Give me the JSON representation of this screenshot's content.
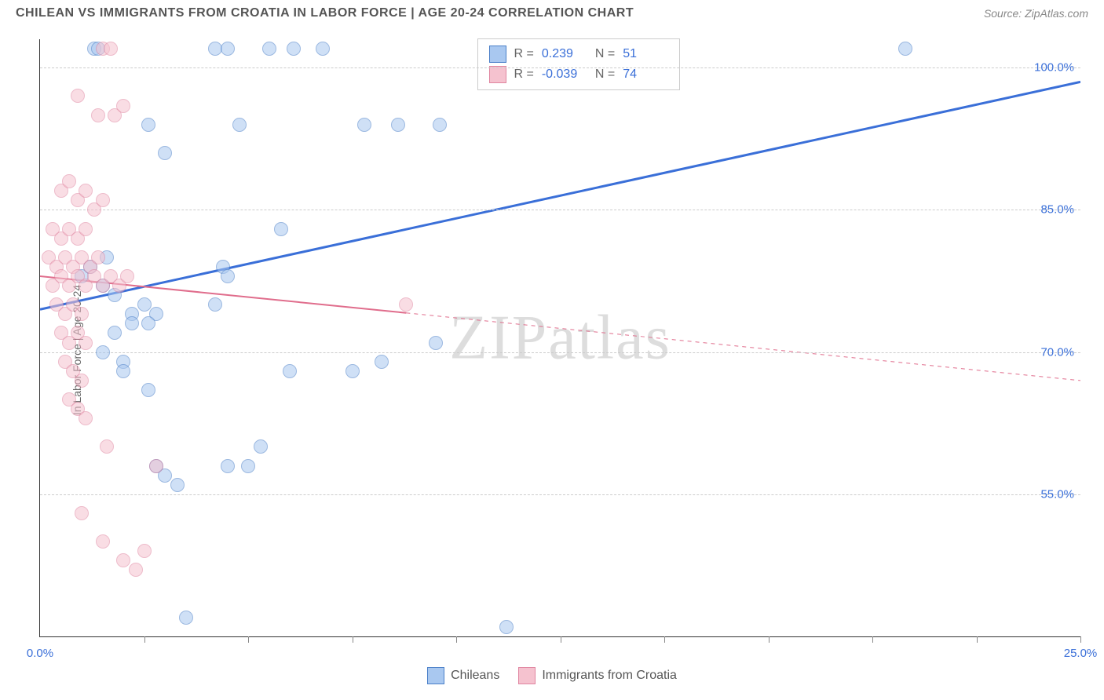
{
  "header": {
    "title": "CHILEAN VS IMMIGRANTS FROM CROATIA IN LABOR FORCE | AGE 20-24 CORRELATION CHART",
    "source": "Source: ZipAtlas.com"
  },
  "chart": {
    "type": "scatter",
    "y_label": "In Labor Force | Age 20-24",
    "x_domain": [
      0,
      25
    ],
    "y_domain": [
      40,
      103
    ],
    "y_ticks": [
      55.0,
      70.0,
      85.0,
      100.0
    ],
    "y_tick_labels": [
      "55.0%",
      "70.0%",
      "85.0%",
      "100.0%"
    ],
    "x_minor_ticks": [
      2.5,
      5.0,
      7.5,
      10.0,
      12.5,
      15.0,
      17.5,
      20.0,
      22.5,
      25.0
    ],
    "x_tick_labels": [
      {
        "x": 0,
        "label": "0.0%"
      },
      {
        "x": 25,
        "label": "25.0%"
      }
    ],
    "grid_color": "#cccccc",
    "background_color": "#ffffff",
    "series": [
      {
        "name": "Chileans",
        "color_fill": "#a9c8f0",
        "color_stroke": "#4a7fc8",
        "marker_radius": 9,
        "r_value": "0.239",
        "n_value": "51",
        "trend": {
          "x1": 0,
          "y1": 74.5,
          "x2": 25,
          "y2": 98.5,
          "solid_until_x": 25,
          "line_width": 3
        },
        "points": [
          [
            1.3,
            102
          ],
          [
            1.4,
            102
          ],
          [
            4.2,
            102
          ],
          [
            4.5,
            102
          ],
          [
            5.5,
            102
          ],
          [
            6.1,
            102
          ],
          [
            6.8,
            102
          ],
          [
            20.8,
            102
          ],
          [
            2.6,
            94
          ],
          [
            4.8,
            94
          ],
          [
            7.8,
            94
          ],
          [
            8.6,
            94
          ],
          [
            9.6,
            94
          ],
          [
            1.0,
            78
          ],
          [
            1.2,
            79
          ],
          [
            1.5,
            77
          ],
          [
            1.6,
            80
          ],
          [
            1.8,
            76
          ],
          [
            2.2,
            74
          ],
          [
            2.5,
            75
          ],
          [
            2.8,
            74
          ],
          [
            3.0,
            91
          ],
          [
            4.4,
            79
          ],
          [
            4.5,
            78
          ],
          [
            5.8,
            83
          ],
          [
            2.2,
            73
          ],
          [
            2.6,
            73
          ],
          [
            1.8,
            72
          ],
          [
            1.5,
            70
          ],
          [
            2.0,
            69
          ],
          [
            4.2,
            75
          ],
          [
            6.0,
            68
          ],
          [
            7.5,
            68
          ],
          [
            8.2,
            69
          ],
          [
            9.5,
            71
          ],
          [
            2.0,
            68
          ],
          [
            2.6,
            66
          ],
          [
            2.8,
            58
          ],
          [
            3.0,
            57
          ],
          [
            3.3,
            56
          ],
          [
            4.5,
            58
          ],
          [
            5.0,
            58
          ],
          [
            5.3,
            60
          ],
          [
            3.5,
            42
          ],
          [
            11.2,
            41
          ]
        ]
      },
      {
        "name": "Immigrants from Croatia",
        "color_fill": "#f5c2cf",
        "color_stroke": "#e085a0",
        "marker_radius": 9,
        "r_value": "-0.039",
        "n_value": "74",
        "trend": {
          "x1": 0,
          "y1": 78.0,
          "x2": 25,
          "y2": 67.0,
          "solid_until_x": 8.8,
          "line_width": 2
        },
        "points": [
          [
            1.5,
            102
          ],
          [
            1.7,
            102
          ],
          [
            0.9,
            97
          ],
          [
            1.4,
            95
          ],
          [
            1.8,
            95
          ],
          [
            2.0,
            96
          ],
          [
            0.5,
            87
          ],
          [
            0.7,
            88
          ],
          [
            0.9,
            86
          ],
          [
            1.1,
            87
          ],
          [
            1.3,
            85
          ],
          [
            1.5,
            86
          ],
          [
            0.3,
            83
          ],
          [
            0.5,
            82
          ],
          [
            0.7,
            83
          ],
          [
            0.9,
            82
          ],
          [
            1.1,
            83
          ],
          [
            0.2,
            80
          ],
          [
            0.4,
            79
          ],
          [
            0.6,
            80
          ],
          [
            0.8,
            79
          ],
          [
            1.0,
            80
          ],
          [
            1.2,
            79
          ],
          [
            1.4,
            80
          ],
          [
            0.3,
            77
          ],
          [
            0.5,
            78
          ],
          [
            0.7,
            77
          ],
          [
            0.9,
            78
          ],
          [
            1.1,
            77
          ],
          [
            1.3,
            78
          ],
          [
            1.5,
            77
          ],
          [
            1.7,
            78
          ],
          [
            1.9,
            77
          ],
          [
            2.1,
            78
          ],
          [
            0.4,
            75
          ],
          [
            0.6,
            74
          ],
          [
            0.8,
            75
          ],
          [
            1.0,
            74
          ],
          [
            0.5,
            72
          ],
          [
            0.7,
            71
          ],
          [
            0.9,
            72
          ],
          [
            1.1,
            71
          ],
          [
            0.6,
            69
          ],
          [
            0.8,
            68
          ],
          [
            1.0,
            67
          ],
          [
            0.7,
            65
          ],
          [
            0.9,
            64
          ],
          [
            1.1,
            63
          ],
          [
            1.6,
            60
          ],
          [
            2.8,
            58
          ],
          [
            1.0,
            53
          ],
          [
            1.5,
            50
          ],
          [
            2.0,
            48
          ],
          [
            2.3,
            47
          ],
          [
            2.5,
            49
          ],
          [
            8.8,
            75
          ]
        ]
      }
    ]
  },
  "stats_labels": {
    "r": "R =",
    "n": "N ="
  },
  "legend": {
    "items": [
      {
        "label": "Chileans",
        "class": "blue"
      },
      {
        "label": "Immigrants from Croatia",
        "class": "pink"
      }
    ]
  },
  "watermark": "ZIPatlas"
}
